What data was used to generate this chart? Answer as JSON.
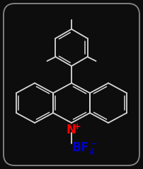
{
  "bg_color": "#0d0d0d",
  "line_color": "#d8d8d8",
  "line_width": 1.3,
  "n_color": "#ff0000",
  "bf4_color": "#0000cc",
  "fig_width": 2.02,
  "fig_height": 2.38,
  "dpi": 100
}
